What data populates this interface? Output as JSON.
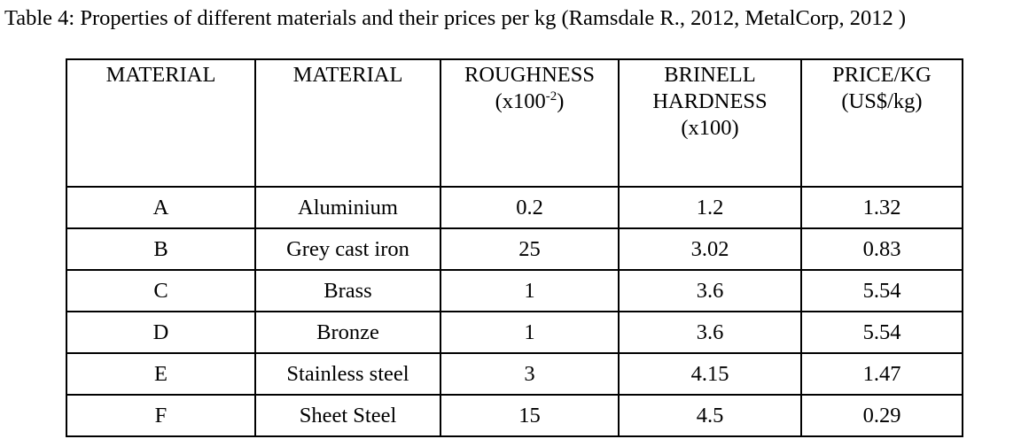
{
  "caption": "Table 4: Properties of different materials and their prices per kg (Ramsdale R., 2012, MetalCorp, 2012 )",
  "headers": {
    "col1": "MATERIAL",
    "col2": "MATERIAL",
    "col3_line1": "ROUGHNESS",
    "col3_line2_pre": "(x100",
    "col3_line2_sup": "-2",
    "col3_line2_post": ")",
    "col4_line1": "BRINELL",
    "col4_line2": "HARDNESS",
    "col4_line3": "(x100)",
    "col5_line1": "PRICE/KG",
    "col5_line2": "(US$/kg)"
  },
  "rows": [
    {
      "code": "A",
      "material": "Aluminium",
      "roughness": "0.2",
      "hardness": "1.2",
      "price": "1.32"
    },
    {
      "code": "B",
      "material": "Grey cast iron",
      "roughness": "25",
      "hardness": "3.02",
      "price": "0.83"
    },
    {
      "code": "C",
      "material": "Brass",
      "roughness": "1",
      "hardness": "3.6",
      "price": "5.54"
    },
    {
      "code": "D",
      "material": "Bronze",
      "roughness": "1",
      "hardness": "3.6",
      "price": "5.54"
    },
    {
      "code": "E",
      "material": "Stainless steel",
      "roughness": "3",
      "hardness": "4.15",
      "price": "1.47"
    },
    {
      "code": "F",
      "material": "Sheet Steel",
      "roughness": "15",
      "hardness": "4.5",
      "price": "0.29"
    }
  ]
}
